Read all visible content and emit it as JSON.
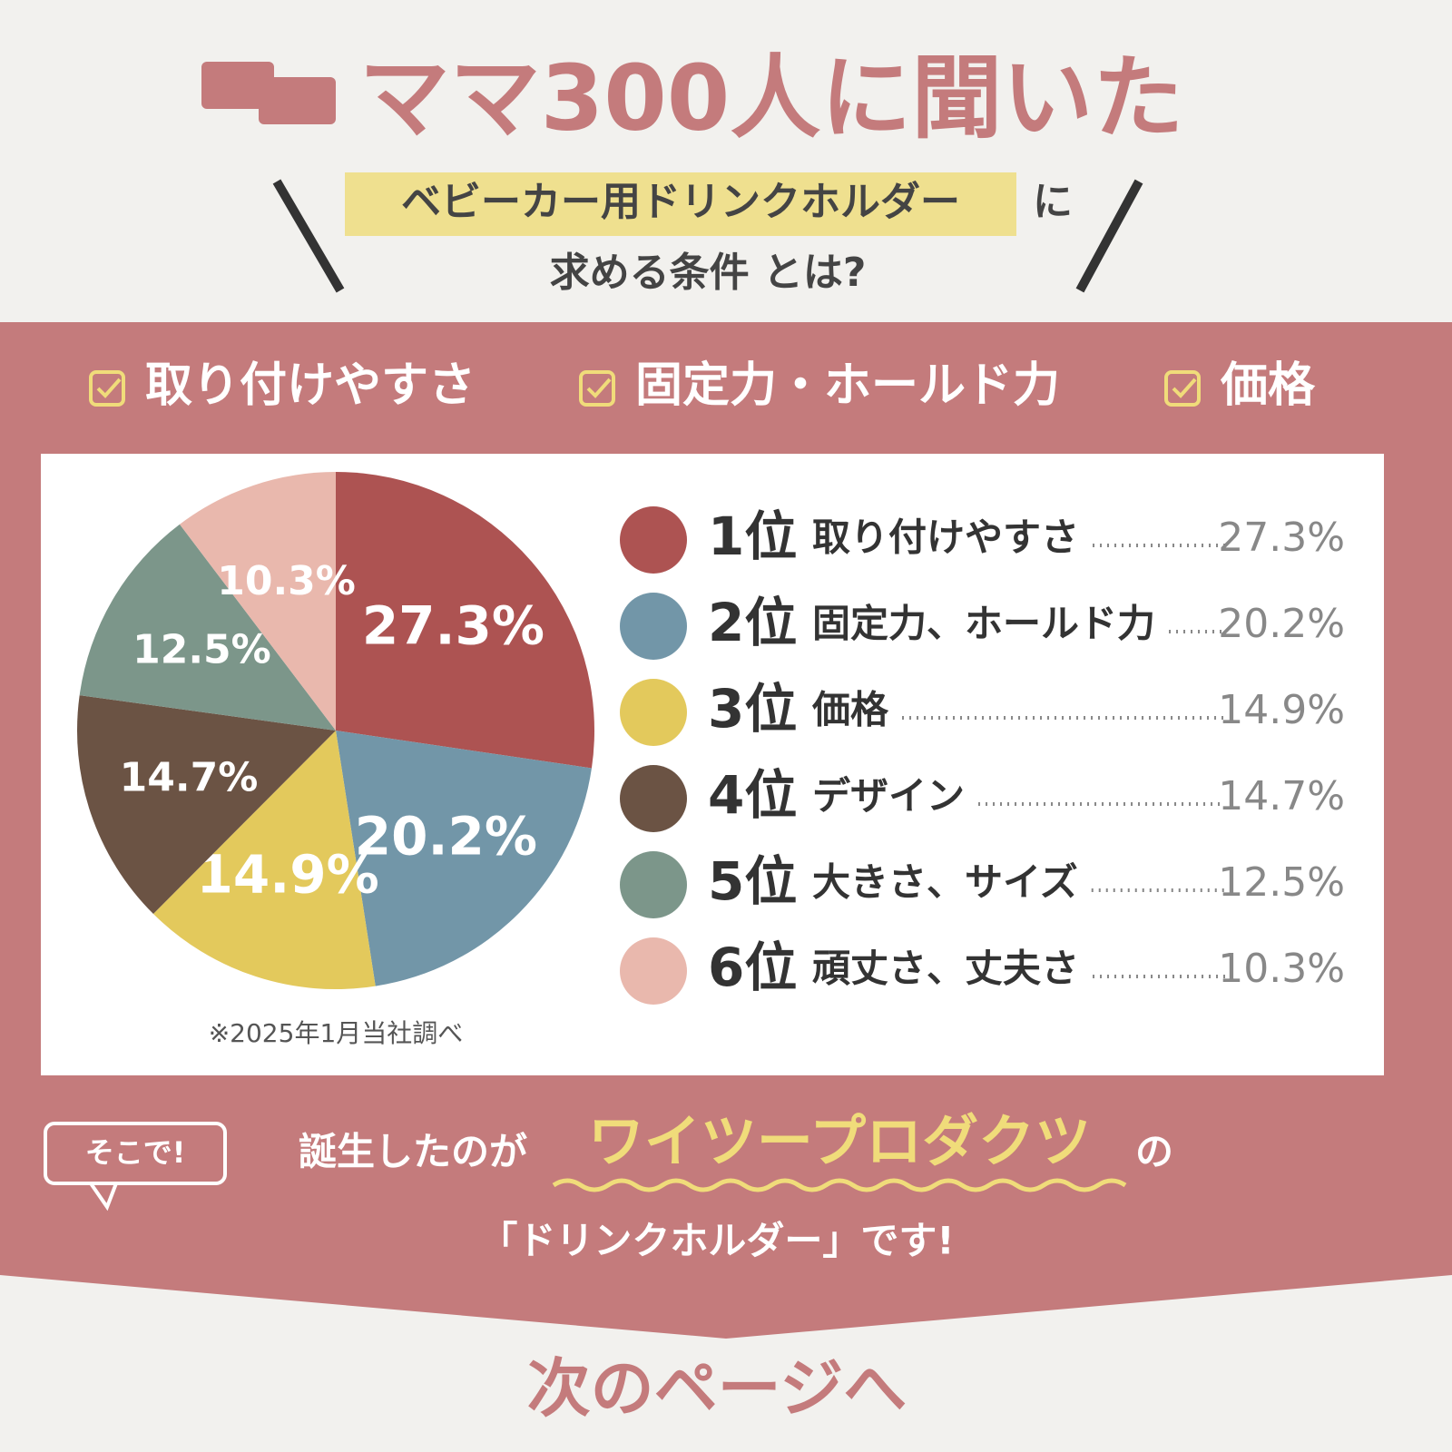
{
  "header": {
    "title": "ママ300人に聞いた",
    "highlight": "ベビーカー用ドリンクホルダー",
    "particle": "に",
    "subtitle": "求める条件 とは?"
  },
  "checks": [
    "取り付けやすさ",
    "固定力・ホールド力",
    "価格"
  ],
  "chart_data": {
    "type": "pie",
    "categories": [
      "取り付けやすさ",
      "固定力、ホールド力",
      "価格",
      "デザイン",
      "大きさ、サイズ",
      "頑丈さ、丈夫さ"
    ],
    "ranks": [
      "1位",
      "2位",
      "3位",
      "4位",
      "5位",
      "6位"
    ],
    "values": [
      27.3,
      20.2,
      14.9,
      14.7,
      12.5,
      10.3
    ],
    "value_labels": [
      "27.3%",
      "20.2%",
      "14.9%",
      "14.7%",
      "12.5%",
      "10.3%"
    ],
    "colors": [
      "#ad5352",
      "#7296a8",
      "#e3c95c",
      "#6b5344",
      "#7c968a",
      "#e9b8ad"
    ],
    "note": "※2025年1月当社調べ"
  },
  "footer": {
    "badge": "そこで!",
    "lead": "誕生したのが",
    "brand": "ワイツープロダクツ",
    "particle": "の",
    "line2": "「ドリンクホルダー」です!",
    "next": "次のページへ"
  }
}
